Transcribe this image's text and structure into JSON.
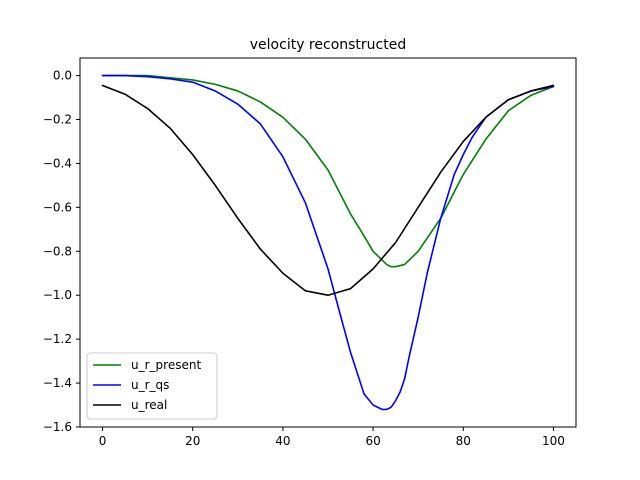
{
  "chart_data": {
    "type": "line",
    "title": "velocity reconstructed",
    "xlabel": "",
    "ylabel": "",
    "xlim": [
      -5,
      105
    ],
    "ylim": [
      -1.6,
      0.08
    ],
    "xticks": [
      0,
      20,
      40,
      60,
      80,
      100
    ],
    "yticks": [
      0.0,
      -0.2,
      -0.4,
      -0.6,
      -0.8,
      -1.0,
      -1.2,
      -1.4,
      -1.6
    ],
    "xtick_labels": [
      "0",
      "20",
      "40",
      "60",
      "80",
      "100"
    ],
    "ytick_labels": [
      "0.0",
      "−0.2",
      "−0.4",
      "−0.6",
      "−0.8",
      "−1.0",
      "−1.2",
      "−1.4",
      "−1.6"
    ],
    "grid": false,
    "legend_position": "lower-left",
    "series": [
      {
        "name": "u_r_present",
        "color": "#008000",
        "x": [
          0,
          5,
          10,
          15,
          20,
          25,
          30,
          35,
          40,
          45,
          50,
          53,
          55,
          58,
          60,
          62,
          63,
          64,
          65,
          66,
          67,
          68,
          70,
          72,
          75,
          78,
          80,
          85,
          90,
          95,
          100
        ],
        "y": [
          0.0,
          0.0,
          0.0,
          -0.01,
          -0.02,
          -0.04,
          -0.07,
          -0.12,
          -0.19,
          -0.29,
          -0.43,
          -0.55,
          -0.63,
          -0.73,
          -0.8,
          -0.84,
          -0.86,
          -0.87,
          -0.87,
          -0.865,
          -0.86,
          -0.84,
          -0.8,
          -0.74,
          -0.65,
          -0.53,
          -0.45,
          -0.29,
          -0.16,
          -0.09,
          -0.05
        ]
      },
      {
        "name": "u_r_qs",
        "color": "#0000ff",
        "x": [
          0,
          5,
          10,
          15,
          20,
          25,
          30,
          35,
          40,
          45,
          50,
          53,
          55,
          58,
          60,
          61,
          62,
          63,
          64,
          65,
          66,
          67,
          68,
          70,
          72,
          75,
          78,
          80,
          82,
          85,
          90,
          95,
          100
        ],
        "y": [
          0.0,
          0.0,
          -0.005,
          -0.015,
          -0.03,
          -0.07,
          -0.13,
          -0.22,
          -0.37,
          -0.58,
          -0.88,
          -1.11,
          -1.26,
          -1.45,
          -1.5,
          -1.51,
          -1.52,
          -1.52,
          -1.51,
          -1.48,
          -1.44,
          -1.38,
          -1.28,
          -1.1,
          -0.9,
          -0.65,
          -0.45,
          -0.36,
          -0.28,
          -0.19,
          -0.11,
          -0.07,
          -0.05
        ]
      },
      {
        "name": "u_real",
        "color": "#000000",
        "x": [
          0,
          5,
          10,
          15,
          20,
          25,
          30,
          35,
          40,
          45,
          50,
          55,
          60,
          65,
          70,
          75,
          80,
          85,
          90,
          95,
          100
        ],
        "y": [
          -0.045,
          -0.085,
          -0.15,
          -0.24,
          -0.36,
          -0.5,
          -0.65,
          -0.79,
          -0.9,
          -0.98,
          -1.0,
          -0.97,
          -0.88,
          -0.76,
          -0.6,
          -0.44,
          -0.3,
          -0.19,
          -0.11,
          -0.07,
          -0.045
        ]
      }
    ]
  }
}
